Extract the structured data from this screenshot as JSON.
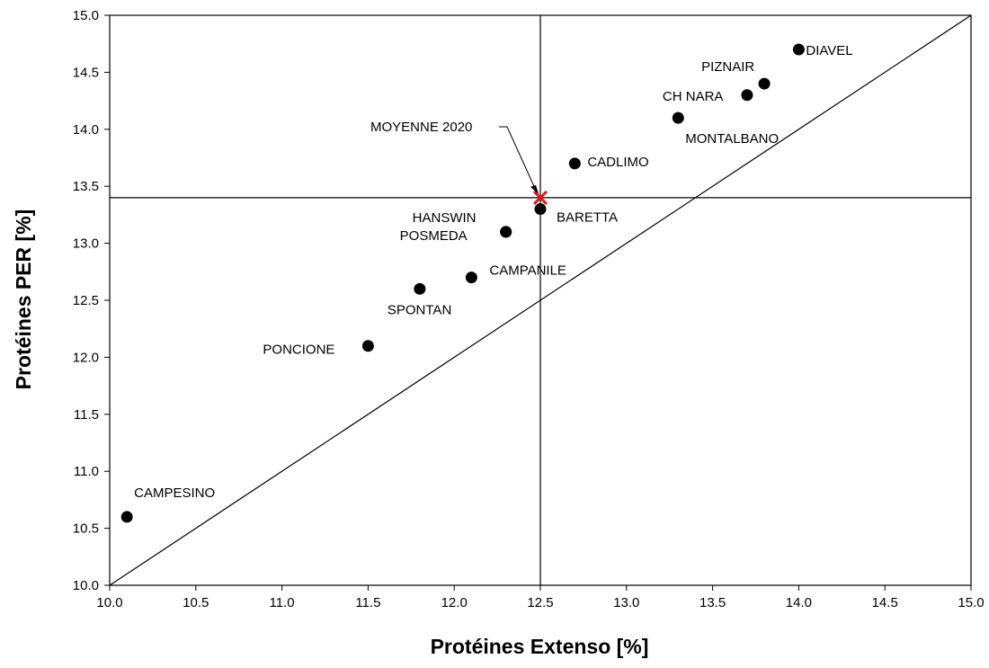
{
  "chart_data": {
    "type": "scatter",
    "xlabel": "Protéines Extenso [%]",
    "ylabel": "Protéines PER [%]",
    "xlim": [
      10.0,
      15.0
    ],
    "ylim": [
      10.0,
      15.0
    ],
    "xticks": [
      "10.0",
      "10.5",
      "11.0",
      "11.5",
      "12.0",
      "12.5",
      "13.0",
      "13.5",
      "14.0",
      "14.5",
      "15.0"
    ],
    "yticks": [
      "10.0",
      "10.5",
      "11.0",
      "11.5",
      "12.0",
      "12.5",
      "13.0",
      "13.5",
      "14.0",
      "14.5",
      "15.0"
    ],
    "grid": false,
    "points": [
      {
        "label": "DIAVEL",
        "x": 14.0,
        "y": 14.7
      },
      {
        "label": "PIZNAIR",
        "x": 13.8,
        "y": 14.4
      },
      {
        "label": "CH NARA",
        "x": 13.7,
        "y": 14.3
      },
      {
        "label": "MONTALBANO",
        "x": 13.3,
        "y": 14.1
      },
      {
        "label": "CADLIMO",
        "x": 12.7,
        "y": 13.7
      },
      {
        "label": "BARETTA",
        "x": 12.5,
        "y": 13.3
      },
      {
        "label": "HANSWIN",
        "x": 12.3,
        "y": 13.1
      },
      {
        "label": "POSMEDA",
        "x": 12.3,
        "y": 13.1
      },
      {
        "label": "CAMPANILE",
        "x": 12.1,
        "y": 12.7
      },
      {
        "label": "SPONTAN",
        "x": 11.8,
        "y": 12.6
      },
      {
        "label": "PONCIONE",
        "x": 11.5,
        "y": 12.1
      },
      {
        "label": "CAMPESINO",
        "x": 10.1,
        "y": 10.6
      }
    ],
    "mean": {
      "label": "MOYENNE 2020",
      "x": 12.5,
      "y": 13.4,
      "marker": "x",
      "color": "#e8161b"
    },
    "reference_lines": {
      "vertical_x": 12.5,
      "horizontal_y": 13.4,
      "diagonal": "y = x"
    },
    "point_color": "#000000"
  }
}
